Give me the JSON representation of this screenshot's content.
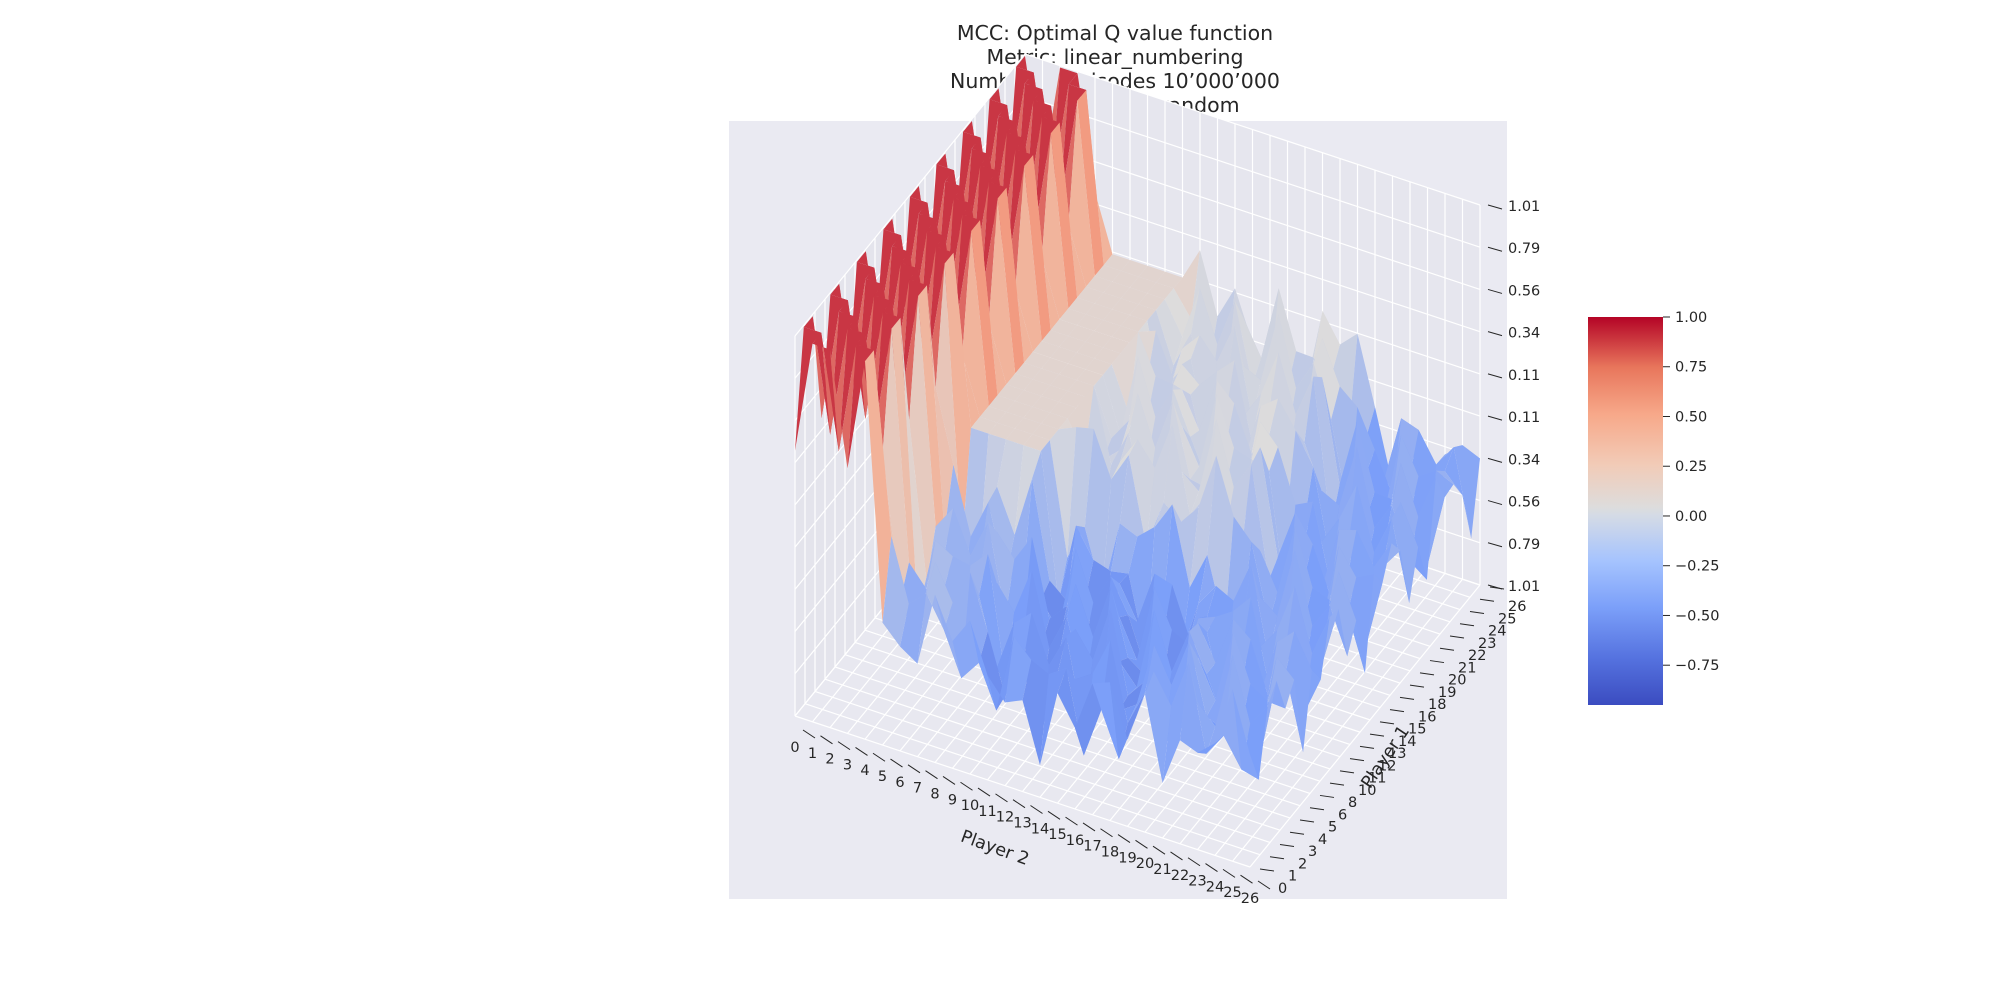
{
  "chart_data": {
    "type": "surface3d",
    "title_lines": [
      "MCC: Optimal Q value function",
      "Metric: linear_numbering",
      "Number of episodes 10’000’000",
      "Player 2 choice: random"
    ],
    "xlabel": "Player 2",
    "ylabel": "Player 1",
    "zlabel": "",
    "x_ticks": [
      "0",
      "1",
      "2",
      "3",
      "4",
      "5",
      "6",
      "7",
      "8",
      "9",
      "10",
      "11",
      "12",
      "13",
      "14",
      "15",
      "16",
      "17",
      "18",
      "19",
      "20",
      "21",
      "22",
      "23",
      "24",
      "25",
      "26"
    ],
    "y_ticks": [
      "0",
      "1",
      "2",
      "3",
      "4",
      "5",
      "6",
      "8",
      "10",
      "11",
      "12",
      "13",
      "14",
      "15",
      "16",
      "18",
      "19",
      "20",
      "21",
      "22",
      "23",
      "24",
      "25",
      "26"
    ],
    "z_ticks": [
      "-1.01",
      "-0.79",
      "-0.56",
      "-0.34",
      "-0.11",
      "0.11",
      "0.34",
      "0.56",
      "0.79",
      "1.01"
    ],
    "zlim": [
      -1.01,
      1.01
    ],
    "colormap": "coolwarm",
    "colorbar": {
      "min": -0.95,
      "max": 1.0,
      "ticks": [
        "1.00",
        "0.75",
        "0.50",
        "0.25",
        "0.00",
        "−0.25",
        "−0.50",
        "−0.75"
      ],
      "tick_values": [
        1.0,
        0.75,
        0.5,
        0.25,
        0.0,
        -0.25,
        -0.5,
        -0.75
      ]
    },
    "surface_description": "Q value over Player 1 (0-26) x Player 2 (0-26) states",
    "approx_regions": [
      {
        "x": [
          0,
          4
        ],
        "y": [
          0,
          26
        ],
        "value": 1.0
      },
      {
        "x": [
          5,
          9
        ],
        "y": [
          10,
          26
        ],
        "value": 0.1
      },
      {
        "x": [
          10,
          20
        ],
        "y": [
          12,
          26
        ],
        "value": -0.05
      },
      {
        "x": [
          10,
          20
        ],
        "y": [
          0,
          10
        ],
        "value": -0.5
      },
      {
        "x": [
          20,
          26
        ],
        "y": [
          0,
          26
        ],
        "value": -0.4
      }
    ]
  },
  "colors": {
    "pane": "#eaeaf2",
    "grid": "#ffffff",
    "text": "#262626",
    "cmap_low": "#3b4cc0",
    "cmap_mid": "#dddddd",
    "cmap_high": "#b40426"
  }
}
